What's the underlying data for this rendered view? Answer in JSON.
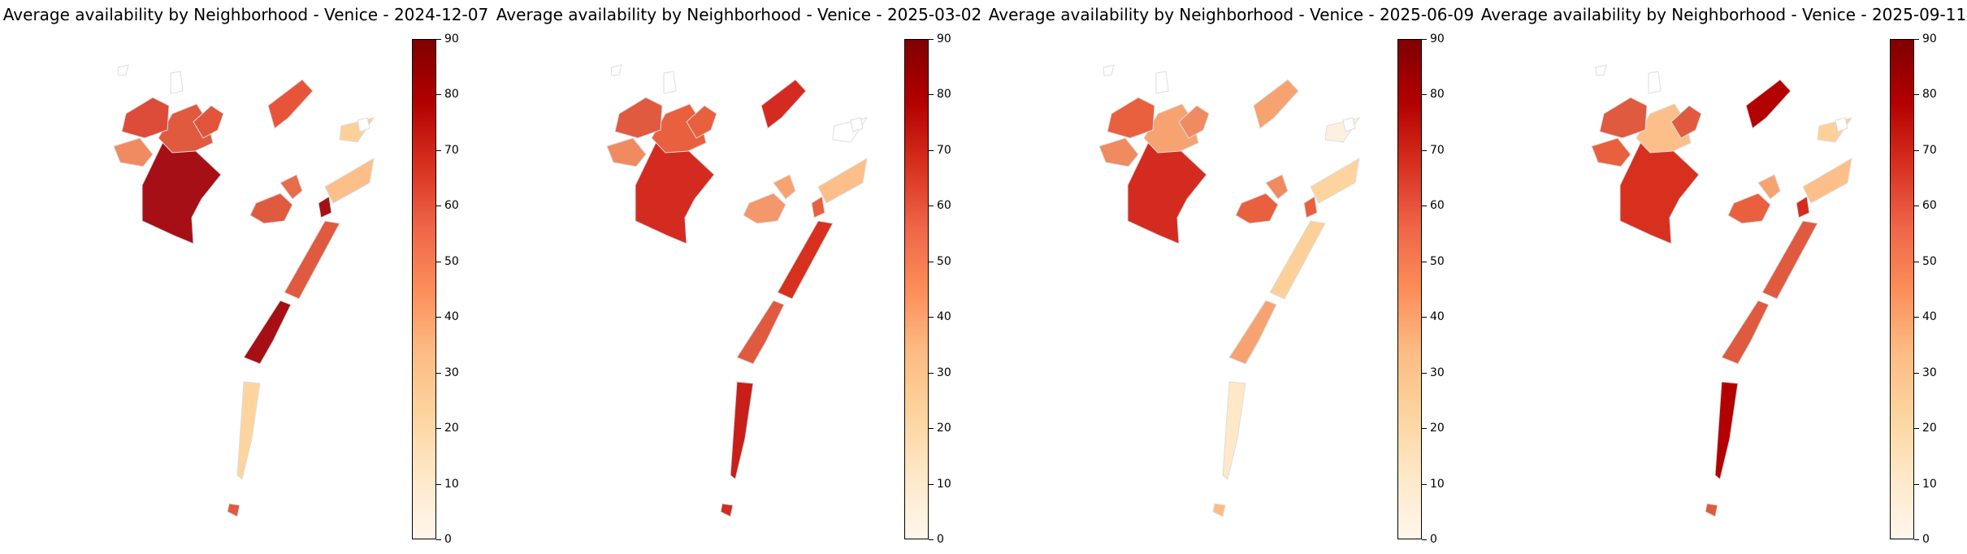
{
  "panels": [
    {
      "title": "Average availability by Neighborhood - Venice - 2024-12-07",
      "colors": {
        "mestre_w": "#a50f15",
        "mestre_c": "#e05a3f",
        "mestre_n": "#dd4b39",
        "marghera": "#f08a60",
        "favaro": "#e6553a",
        "island_ne": "#fdd09a",
        "murano": "#e05a3f",
        "burano": "#a50f15",
        "centro": "#e86b4a",
        "giudecca": "#fcbf89",
        "lido": "#e05a3f",
        "lido_s": "#a50f15",
        "pellestrina": "#fdd49e",
        "pell_s": "#e05a3f",
        "tessera": "#e0553a"
      }
    },
    {
      "title": "Average availability by Neighborhood - Venice - 2025-03-02",
      "colors": {
        "mestre_w": "#d42b20",
        "mestre_c": "#e9603f",
        "mestre_n": "#e05a3f",
        "marghera": "#f08a60",
        "favaro": "#d42b20",
        "island_ne": "#ffffff",
        "murano": "#f4976a",
        "burano": "#e9603f",
        "centro": "#f6a371",
        "giudecca": "#fcbf89",
        "lido": "#d7301f",
        "lido_s": "#e05a3f",
        "pellestrina": "#c81f1a",
        "pell_s": "#d42b20",
        "tessera": "#e9603f"
      }
    },
    {
      "title": "Average availability by Neighborhood - Venice - 2025-06-09",
      "colors": {
        "mestre_w": "#d42b20",
        "mestre_c": "#f6a371",
        "mestre_n": "#e9603f",
        "marghera": "#f08a60",
        "favaro": "#f6a371",
        "island_ne": "#fdf0e0",
        "murano": "#e9603f",
        "burano": "#e9603f",
        "centro": "#f08a60",
        "giudecca": "#fdd49e",
        "lido": "#fdd09a",
        "lido_s": "#f6a371",
        "pellestrina": "#fee8c8",
        "pell_s": "#fdbb84",
        "tessera": "#f08a60"
      }
    },
    {
      "title": "Average availability by Neighborhood - Venice - 2025-09-11",
      "colors": {
        "mestre_w": "#d7301f",
        "mestre_c": "#fcbf89",
        "mestre_n": "#e05a3f",
        "marghera": "#e9603f",
        "favaro": "#b30000",
        "island_ne": "#fdd09a",
        "murano": "#e9603f",
        "burano": "#d42b20",
        "centro": "#f6a371",
        "giudecca": "#fcbf89",
        "lido": "#e05a3f",
        "lido_s": "#e05a3f",
        "pellestrina": "#b30000",
        "pell_s": "#e05a3f",
        "tessera": "#e05a3f"
      }
    }
  ],
  "colorbar": {
    "ticks": [
      "0",
      "10",
      "20",
      "30",
      "40",
      "50",
      "60",
      "70",
      "80",
      "90"
    ],
    "min": 0,
    "max": 90
  }
}
